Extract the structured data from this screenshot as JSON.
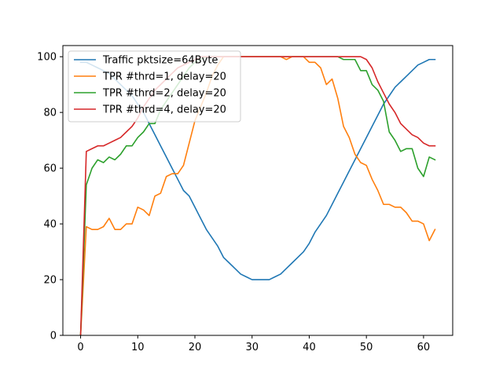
{
  "chart_data": {
    "type": "line",
    "title": "",
    "xlabel": "",
    "ylabel": "",
    "xlim": [
      -3.1,
      65.1
    ],
    "ylim": [
      0,
      104
    ],
    "xticks": [
      0,
      10,
      20,
      30,
      40,
      50,
      60
    ],
    "yticks": [
      0,
      20,
      40,
      60,
      80,
      100
    ],
    "xtick_labels": [
      "0",
      "10",
      "20",
      "30",
      "40",
      "50",
      "60"
    ],
    "ytick_labels": [
      "0",
      "20",
      "40",
      "60",
      "80",
      "100"
    ],
    "grid": false,
    "legend_position": "top-left",
    "series": [
      {
        "name": "Traffic pktsize=64Byte",
        "color": "#1f77b4",
        "x": [
          0,
          1,
          2,
          3,
          4,
          5,
          6,
          7,
          8,
          9,
          10,
          11,
          12,
          13,
          14,
          15,
          16,
          17,
          18,
          19,
          20,
          21,
          22,
          23,
          24,
          25,
          26,
          27,
          28,
          29,
          30,
          31,
          32,
          33,
          34,
          35,
          36,
          37,
          38,
          39,
          40,
          41,
          42,
          43,
          44,
          45,
          46,
          47,
          48,
          49,
          50,
          51,
          52,
          53,
          54,
          55,
          56,
          57,
          58,
          59,
          60,
          61,
          62
        ],
        "y": [
          98,
          98,
          97,
          96,
          95,
          94,
          92,
          90,
          88,
          86,
          83,
          80,
          76,
          72,
          68,
          64,
          60,
          56,
          52,
          50,
          46,
          42,
          38,
          35,
          32,
          28,
          26,
          24,
          22,
          21,
          20,
          20,
          20,
          20,
          21,
          22,
          24,
          26,
          28,
          30,
          33,
          37,
          40,
          43,
          47,
          51,
          55,
          59,
          63,
          67,
          71,
          75,
          79,
          83,
          86,
          89,
          91,
          93,
          95,
          97,
          98,
          99,
          99
        ]
      },
      {
        "name": "TPR #thrd=1, delay=20",
        "color": "#ff7f0e",
        "x": [
          0,
          1,
          2,
          3,
          4,
          5,
          6,
          7,
          8,
          9,
          10,
          11,
          12,
          13,
          14,
          15,
          16,
          17,
          18,
          19,
          20,
          21,
          22,
          23,
          24,
          25,
          26,
          27,
          28,
          29,
          30,
          31,
          32,
          33,
          34,
          35,
          36,
          37,
          38,
          39,
          40,
          41,
          42,
          43,
          44,
          45,
          46,
          47,
          48,
          49,
          50,
          51,
          52,
          53,
          54,
          55,
          56,
          57,
          58,
          59,
          60,
          61,
          62
        ],
        "y": [
          0,
          39,
          38,
          38,
          39,
          42,
          38,
          38,
          40,
          40,
          46,
          45,
          43,
          50,
          51,
          57,
          58,
          58,
          61,
          69,
          77,
          82,
          87,
          93,
          97,
          100,
          100,
          100,
          100,
          100,
          100,
          100,
          100,
          100,
          100,
          100,
          99,
          100,
          100,
          100,
          98,
          98,
          96,
          90,
          92,
          85,
          75,
          71,
          65,
          62,
          61,
          56,
          52,
          47,
          47,
          46,
          46,
          44,
          41,
          41,
          40,
          34,
          38
        ]
      },
      {
        "name": "TPR #thrd=2, delay=20",
        "color": "#2ca02c",
        "x": [
          0,
          1,
          2,
          3,
          4,
          5,
          6,
          7,
          8,
          9,
          10,
          11,
          12,
          13,
          14,
          15,
          16,
          17,
          18,
          19,
          20,
          21,
          22,
          23,
          24,
          25,
          26,
          27,
          28,
          29,
          30,
          31,
          32,
          33,
          34,
          35,
          36,
          37,
          38,
          39,
          40,
          41,
          42,
          43,
          44,
          45,
          46,
          47,
          48,
          49,
          50,
          51,
          52,
          53,
          54,
          55,
          56,
          57,
          58,
          59,
          60,
          61,
          62
        ],
        "y": [
          0,
          54,
          60,
          63,
          62,
          64,
          63,
          65,
          68,
          68,
          71,
          73,
          76,
          76,
          81,
          84,
          87,
          90,
          93,
          96,
          98,
          99,
          100,
          100,
          100,
          100,
          100,
          100,
          100,
          100,
          100,
          100,
          100,
          100,
          100,
          100,
          100,
          100,
          100,
          100,
          100,
          100,
          100,
          100,
          100,
          100,
          99,
          99,
          99,
          95,
          95,
          90,
          88,
          84,
          73,
          70,
          66,
          67,
          67,
          60,
          57,
          64,
          63
        ]
      },
      {
        "name": "TPR #thrd=4, delay=20",
        "color": "#d62728",
        "x": [
          0,
          1,
          2,
          3,
          4,
          5,
          6,
          7,
          8,
          9,
          10,
          11,
          12,
          13,
          14,
          15,
          16,
          17,
          18,
          19,
          20,
          21,
          22,
          23,
          24,
          25,
          26,
          27,
          28,
          29,
          30,
          31,
          32,
          33,
          34,
          35,
          36,
          37,
          38,
          39,
          40,
          41,
          42,
          43,
          44,
          45,
          46,
          47,
          48,
          49,
          50,
          51,
          52,
          53,
          54,
          55,
          56,
          57,
          58,
          59,
          60,
          61,
          62
        ],
        "y": [
          0,
          66,
          67,
          68,
          68,
          69,
          70,
          71,
          73,
          75,
          78,
          82,
          85,
          88,
          90,
          92,
          94,
          96,
          97,
          98,
          99,
          100,
          100,
          100,
          100,
          100,
          100,
          100,
          100,
          100,
          100,
          100,
          100,
          100,
          100,
          100,
          100,
          100,
          100,
          100,
          100,
          100,
          100,
          100,
          100,
          100,
          100,
          100,
          100,
          100,
          99,
          96,
          91,
          87,
          83,
          80,
          76,
          74,
          72,
          71,
          69,
          68,
          68
        ]
      }
    ]
  }
}
